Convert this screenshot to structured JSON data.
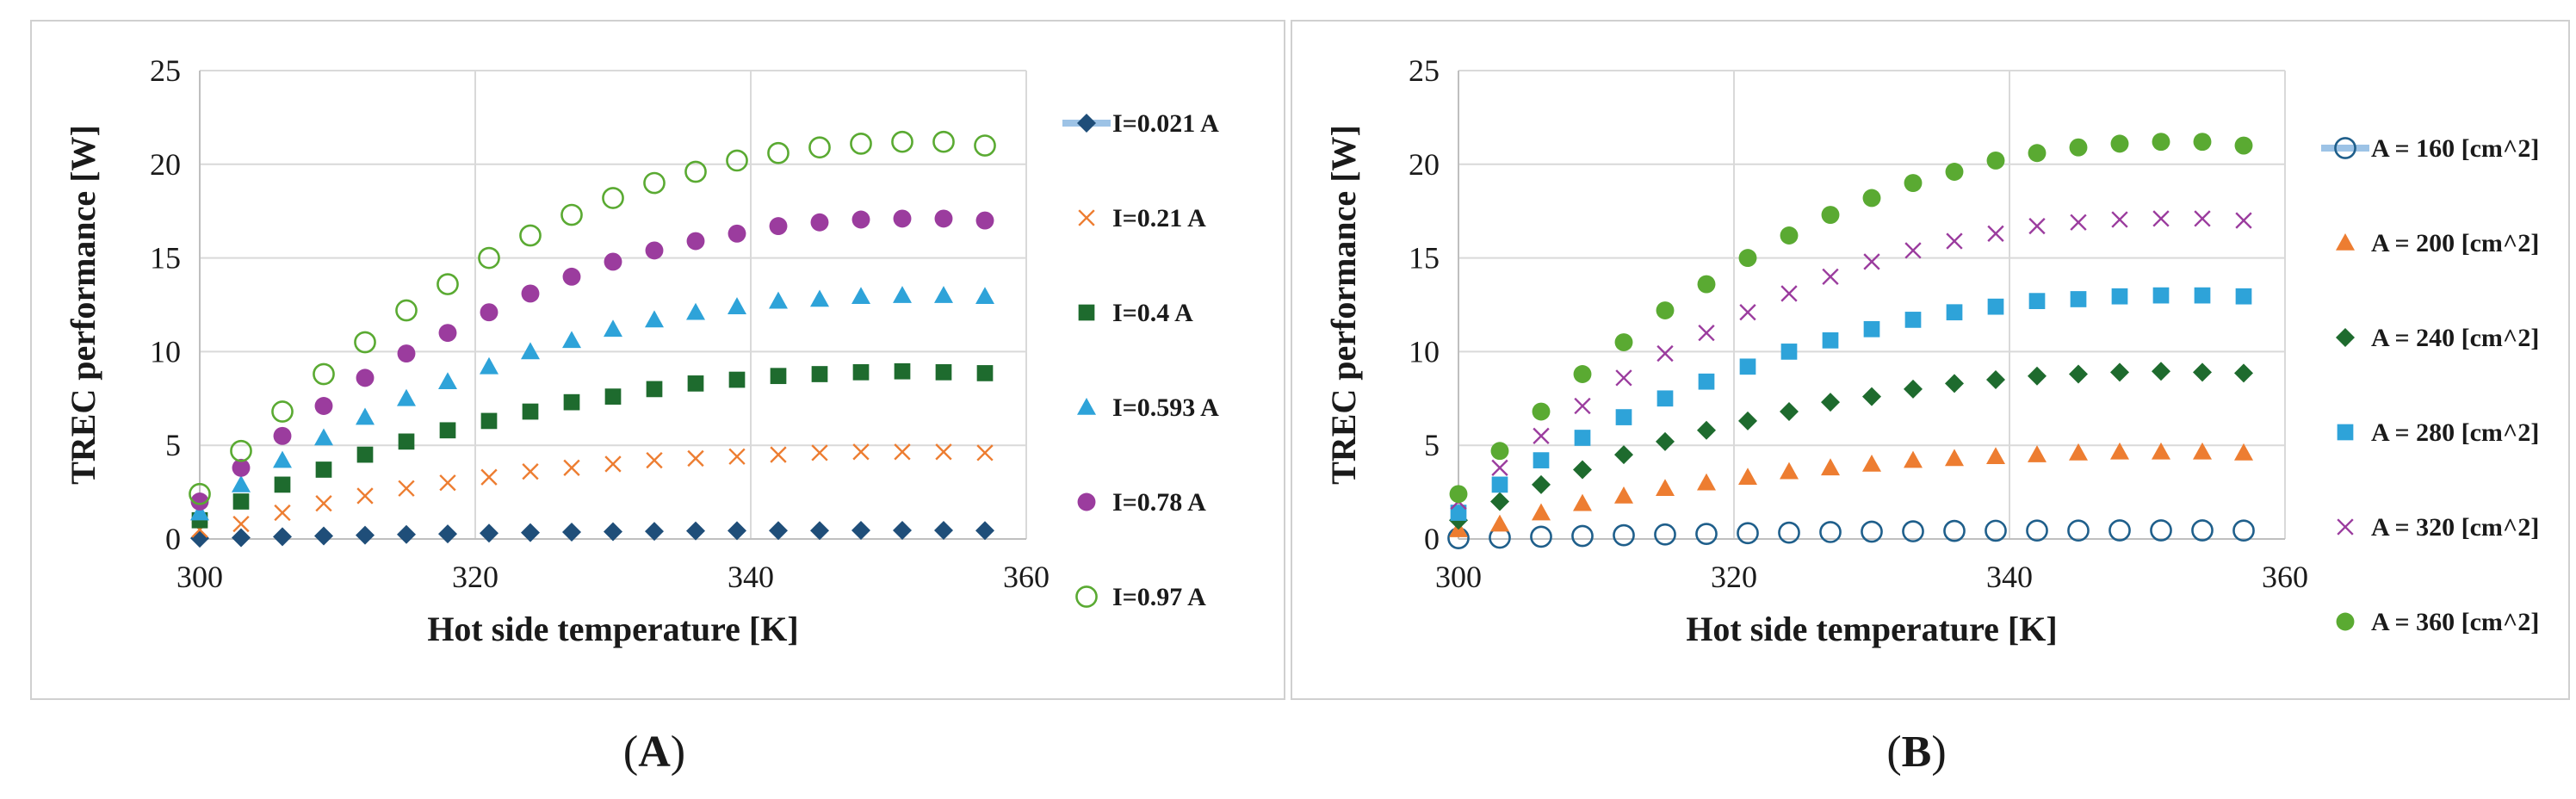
{
  "chart_data": [
    {
      "type": "scatter",
      "panel_label": "(A)",
      "xlabel": "Hot side temperature [K]",
      "ylabel": "TREC performance [W]",
      "xlim": [
        300,
        360
      ],
      "ylim": [
        0,
        25
      ],
      "xticks": [
        300,
        320,
        340,
        360
      ],
      "yticks": [
        0,
        5,
        10,
        15,
        20,
        25
      ],
      "grid": true,
      "legend": "right",
      "x": [
        300,
        303,
        306,
        309,
        312,
        315,
        318,
        321,
        324,
        327,
        330,
        333,
        336,
        339,
        342,
        345,
        348,
        351,
        354,
        357
      ],
      "series": [
        {
          "name": "I=0.021 A",
          "marker": "diamond",
          "color": "#1f4e79",
          "values": [
            0.04,
            0.07,
            0.12,
            0.16,
            0.2,
            0.24,
            0.27,
            0.31,
            0.34,
            0.37,
            0.39,
            0.41,
            0.43,
            0.44,
            0.45,
            0.45,
            0.46,
            0.46,
            0.46,
            0.45
          ]
        },
        {
          "name": "I=0.21 A",
          "marker": "x",
          "color": "#ed7d31",
          "values": [
            0.5,
            0.8,
            1.4,
            1.9,
            2.3,
            2.7,
            3.0,
            3.3,
            3.6,
            3.8,
            4.0,
            4.2,
            4.3,
            4.4,
            4.5,
            4.6,
            4.65,
            4.65,
            4.65,
            4.6
          ]
        },
        {
          "name": "I=0.4 A",
          "marker": "square",
          "color": "#1e6b2e",
          "values": [
            1.0,
            2.0,
            2.9,
            3.7,
            4.5,
            5.2,
            5.8,
            6.3,
            6.8,
            7.3,
            7.6,
            8.0,
            8.3,
            8.5,
            8.7,
            8.8,
            8.9,
            8.95,
            8.9,
            8.85
          ]
        },
        {
          "name": "I=0.593 A",
          "marker": "triangle",
          "color": "#2ea3d9",
          "values": [
            1.4,
            2.9,
            4.2,
            5.4,
            6.5,
            7.5,
            8.4,
            9.2,
            10.0,
            10.6,
            11.2,
            11.7,
            12.1,
            12.4,
            12.7,
            12.8,
            12.95,
            13.0,
            13.0,
            12.95
          ]
        },
        {
          "name": "I=0.78 A",
          "marker": "circle",
          "color": "#9b3c9e",
          "values": [
            2.0,
            3.8,
            5.5,
            7.1,
            8.6,
            9.9,
            11.0,
            12.1,
            13.1,
            14.0,
            14.8,
            15.4,
            15.9,
            16.3,
            16.7,
            16.9,
            17.05,
            17.1,
            17.1,
            17.0
          ]
        },
        {
          "name": "I=0.97 A",
          "marker": "circle-open",
          "color": "#5aaa32",
          "values": [
            2.4,
            4.7,
            6.8,
            8.8,
            10.5,
            12.2,
            13.6,
            15.0,
            16.2,
            17.3,
            18.2,
            19.0,
            19.6,
            20.2,
            20.6,
            20.9,
            21.1,
            21.2,
            21.2,
            21.0
          ]
        }
      ]
    },
    {
      "type": "scatter",
      "panel_label": "(B)",
      "xlabel": "Hot side temperature [K]",
      "ylabel": "TREC performance [W]",
      "xlim": [
        300,
        360
      ],
      "ylim": [
        0,
        25
      ],
      "xticks": [
        300,
        320,
        340,
        360
      ],
      "yticks": [
        0,
        5,
        10,
        15,
        20,
        25
      ],
      "grid": true,
      "legend": "right",
      "x": [
        300,
        303,
        306,
        309,
        312,
        315,
        318,
        321,
        324,
        327,
        330,
        333,
        336,
        339,
        342,
        345,
        348,
        351,
        354,
        357
      ],
      "series": [
        {
          "name": "A = 160 [cm^2]",
          "marker": "circle-open",
          "color": "#1f5f8b",
          "values": [
            0.04,
            0.07,
            0.12,
            0.16,
            0.2,
            0.24,
            0.27,
            0.31,
            0.34,
            0.37,
            0.39,
            0.41,
            0.43,
            0.44,
            0.45,
            0.45,
            0.46,
            0.46,
            0.46,
            0.45
          ]
        },
        {
          "name": "A = 200 [cm^2]",
          "marker": "triangle",
          "color": "#ed7d31",
          "values": [
            0.5,
            0.8,
            1.4,
            1.9,
            2.3,
            2.7,
            3.0,
            3.3,
            3.6,
            3.8,
            4.0,
            4.2,
            4.3,
            4.4,
            4.5,
            4.6,
            4.65,
            4.65,
            4.65,
            4.6
          ]
        },
        {
          "name": "A = 240 [cm^2]",
          "marker": "diamond",
          "color": "#1e6b2e",
          "values": [
            1.0,
            2.0,
            2.9,
            3.7,
            4.5,
            5.2,
            5.8,
            6.3,
            6.8,
            7.3,
            7.6,
            8.0,
            8.3,
            8.5,
            8.7,
            8.8,
            8.9,
            8.95,
            8.9,
            8.85
          ]
        },
        {
          "name": "A = 280 [cm^2]",
          "marker": "square",
          "color": "#2ea3d9",
          "values": [
            1.4,
            2.9,
            4.2,
            5.4,
            6.5,
            7.5,
            8.4,
            9.2,
            10.0,
            10.6,
            11.2,
            11.7,
            12.1,
            12.4,
            12.7,
            12.8,
            12.95,
            13.0,
            13.0,
            12.95
          ]
        },
        {
          "name": "A = 320 [cm^2]",
          "marker": "x",
          "color": "#9b3c9e",
          "values": [
            2.0,
            3.8,
            5.5,
            7.1,
            8.6,
            9.9,
            11.0,
            12.1,
            13.1,
            14.0,
            14.8,
            15.4,
            15.9,
            16.3,
            16.7,
            16.9,
            17.05,
            17.1,
            17.1,
            17.0
          ]
        },
        {
          "name": "A = 360 [cm^2]",
          "marker": "circle",
          "color": "#5aaa32",
          "values": [
            2.4,
            4.7,
            6.8,
            8.8,
            10.5,
            12.2,
            13.6,
            15.0,
            16.2,
            17.3,
            18.2,
            19.0,
            19.6,
            20.2,
            20.6,
            20.9,
            21.1,
            21.2,
            21.2,
            21.0
          ]
        }
      ]
    }
  ]
}
